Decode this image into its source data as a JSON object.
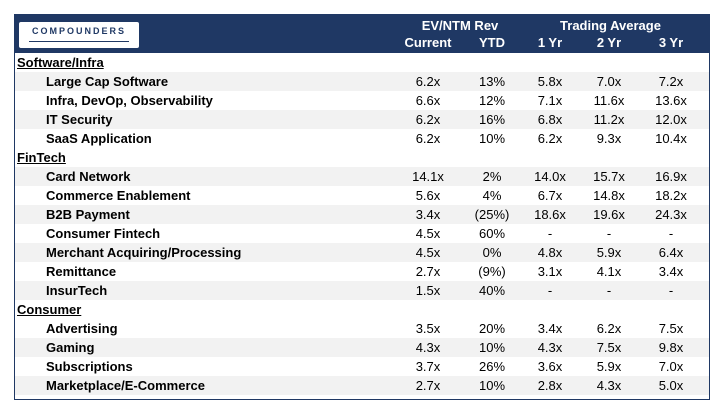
{
  "logo": {
    "text": "COMPOUNDERS"
  },
  "header": {
    "group1": "EV/NTM Rev",
    "group2": "Trading Average",
    "cols": [
      "Current",
      "YTD",
      "1 Yr",
      "2 Yr",
      "3 Yr"
    ]
  },
  "rows": [
    {
      "type": "section",
      "label": "Software/Infra"
    },
    {
      "type": "item",
      "label": "Large Cap Software",
      "cells": [
        "6.2x",
        "13%",
        "5.8x",
        "7.0x",
        "7.2x"
      ]
    },
    {
      "type": "item",
      "label": "Infra, DevOp, Observability",
      "cells": [
        "6.6x",
        "12%",
        "7.1x",
        "11.6x",
        "13.6x"
      ]
    },
    {
      "type": "item",
      "label": "IT Security",
      "cells": [
        "6.2x",
        "16%",
        "6.8x",
        "11.2x",
        "12.0x"
      ]
    },
    {
      "type": "item",
      "label": "SaaS Application",
      "cells": [
        "6.2x",
        "10%",
        "6.2x",
        "9.3x",
        "10.4x"
      ]
    },
    {
      "type": "section",
      "label": "FinTech"
    },
    {
      "type": "item",
      "label": "Card Network",
      "cells": [
        "14.1x",
        "2%",
        "14.0x",
        "15.7x",
        "16.9x"
      ]
    },
    {
      "type": "item",
      "label": "Commerce Enablement",
      "cells": [
        "5.6x",
        "4%",
        "6.7x",
        "14.8x",
        "18.2x"
      ]
    },
    {
      "type": "item",
      "label": "B2B Payment",
      "cells": [
        "3.4x",
        "(25%)",
        "18.6x",
        "19.6x",
        "24.3x"
      ]
    },
    {
      "type": "item",
      "label": "Consumer Fintech",
      "cells": [
        "4.5x",
        "60%",
        "-",
        "-",
        "-"
      ]
    },
    {
      "type": "item",
      "label": "Merchant Acquiring/Processing",
      "cells": [
        "4.5x",
        "0%",
        "4.8x",
        "5.9x",
        "6.4x"
      ]
    },
    {
      "type": "item",
      "label": "Remittance",
      "cells": [
        "2.7x",
        "(9%)",
        "3.1x",
        "4.1x",
        "3.4x"
      ]
    },
    {
      "type": "item",
      "label": "InsurTech",
      "cells": [
        "1.5x",
        "40%",
        "-",
        "-",
        "-"
      ]
    },
    {
      "type": "section",
      "label": "Consumer"
    },
    {
      "type": "item",
      "label": "Advertising",
      "cells": [
        "3.5x",
        "20%",
        "3.4x",
        "6.2x",
        "7.5x"
      ]
    },
    {
      "type": "item",
      "label": "Gaming",
      "cells": [
        "4.3x",
        "10%",
        "4.3x",
        "7.5x",
        "9.8x"
      ]
    },
    {
      "type": "item",
      "label": "Subscriptions",
      "cells": [
        "3.7x",
        "26%",
        "3.6x",
        "5.9x",
        "7.0x"
      ]
    },
    {
      "type": "item",
      "label": "Marketplace/E-Commerce",
      "cells": [
        "2.7x",
        "10%",
        "2.8x",
        "4.3x",
        "5.0x"
      ]
    }
  ]
}
